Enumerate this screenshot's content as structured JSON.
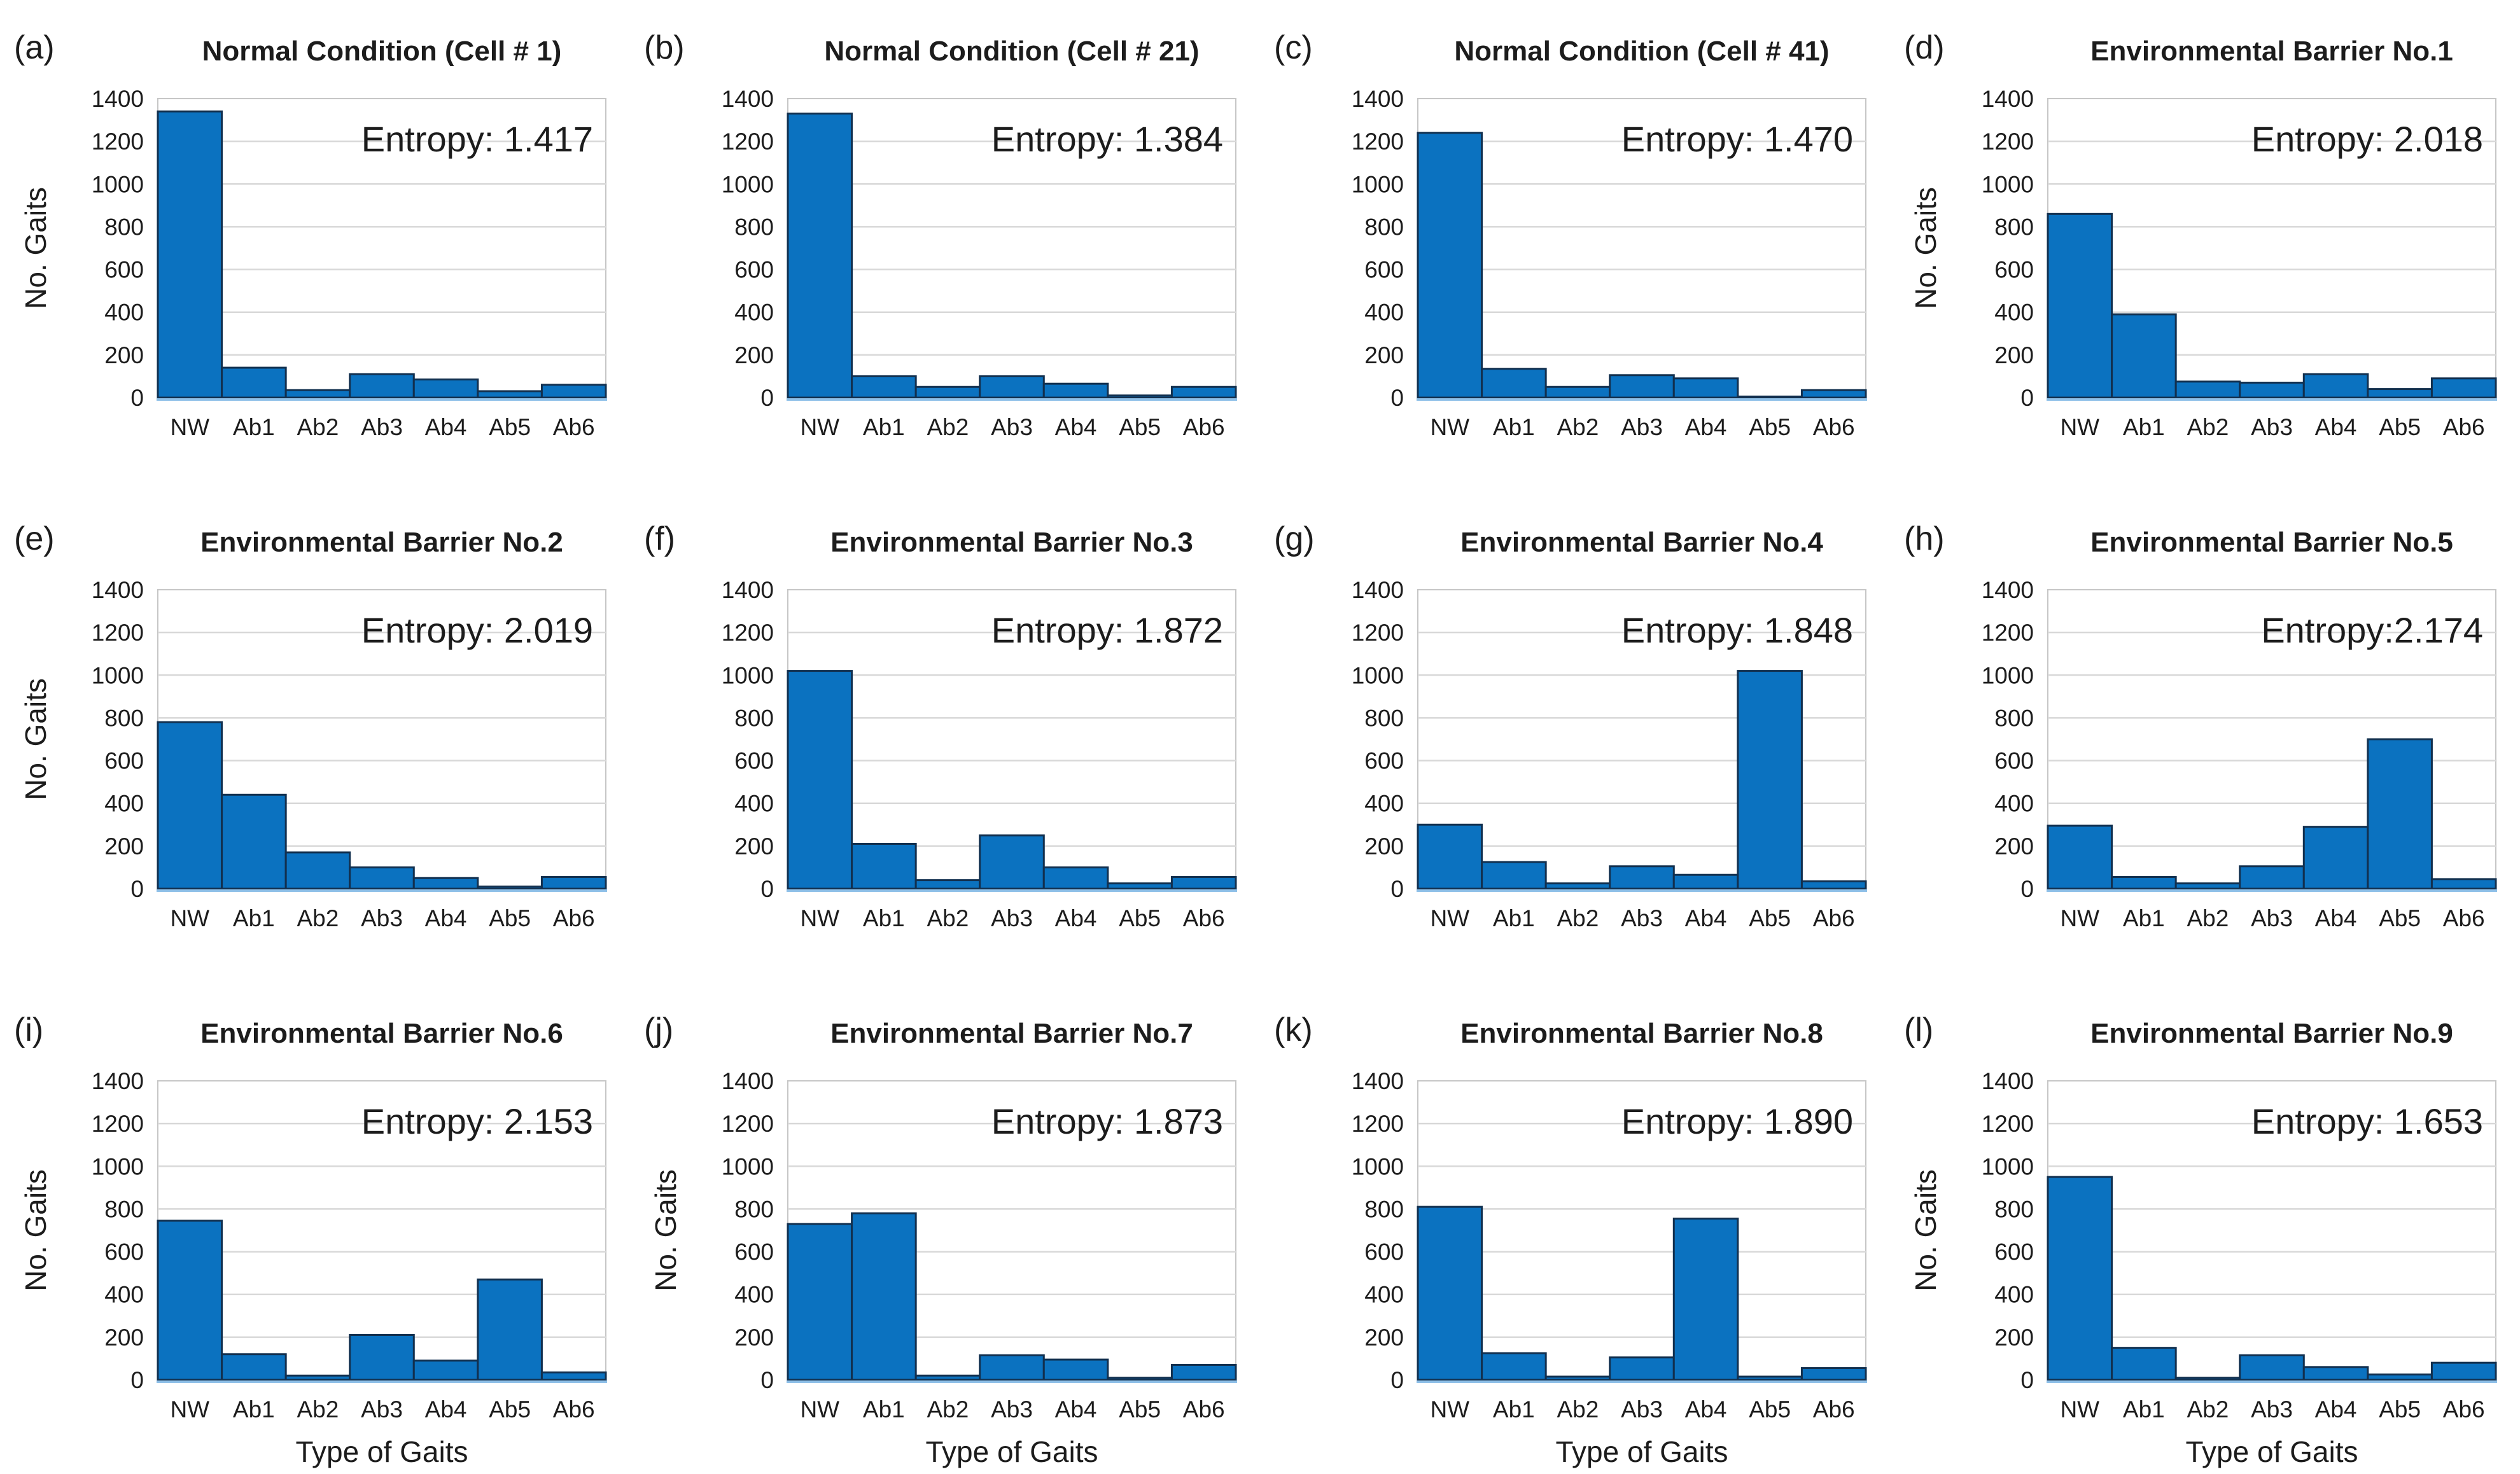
{
  "figure": {
    "bar_color": "#0b72c0",
    "bar_edge_color": "#12304f",
    "grid_color": "#d8d8d8",
    "plot_border_color": "#c6c6c6",
    "baseline_color": "#8fc0e8",
    "text_color": "#1c1c1c"
  },
  "axes": {
    "ylabel": "No. Gaits",
    "xlabel": "Type of Gaits",
    "categories": [
      "NW",
      "Ab1",
      "Ab2",
      "Ab3",
      "Ab4",
      "Ab5",
      "Ab6"
    ],
    "yticks": [
      0,
      200,
      400,
      600,
      800,
      1000,
      1200,
      1400
    ],
    "ylim": [
      0,
      1400
    ],
    "grid": true
  },
  "chart_data": [
    {
      "type": "bar",
      "panel": "(a)",
      "title": "Normal Condition (Cell # 1)",
      "entropy_label": "Entropy: 1.417",
      "entropy": 1.417,
      "categories": [
        "NW",
        "Ab1",
        "Ab2",
        "Ab3",
        "Ab4",
        "Ab5",
        "Ab6"
      ],
      "values": [
        1340,
        140,
        35,
        110,
        85,
        30,
        60
      ],
      "ylim": [
        0,
        1400
      ],
      "show_ylabel": true,
      "show_xlabel": false
    },
    {
      "type": "bar",
      "panel": "(b)",
      "title": "Normal Condition (Cell # 21)",
      "entropy_label": "Entropy: 1.384",
      "entropy": 1.384,
      "categories": [
        "NW",
        "Ab1",
        "Ab2",
        "Ab3",
        "Ab4",
        "Ab5",
        "Ab6"
      ],
      "values": [
        1330,
        100,
        50,
        100,
        65,
        10,
        50
      ],
      "ylim": [
        0,
        1400
      ],
      "show_ylabel": false,
      "show_xlabel": false
    },
    {
      "type": "bar",
      "panel": "(c)",
      "title": "Normal Condition (Cell # 41)",
      "entropy_label": "Entropy: 1.470",
      "entropy": 1.47,
      "categories": [
        "NW",
        "Ab1",
        "Ab2",
        "Ab3",
        "Ab4",
        "Ab5",
        "Ab6"
      ],
      "values": [
        1240,
        135,
        50,
        105,
        90,
        5,
        35
      ],
      "ylim": [
        0,
        1400
      ],
      "show_ylabel": false,
      "show_xlabel": false
    },
    {
      "type": "bar",
      "panel": "(d)",
      "title": "Environmental Barrier No.1",
      "entropy_label": "Entropy: 2.018",
      "entropy": 2.018,
      "categories": [
        "NW",
        "Ab1",
        "Ab2",
        "Ab3",
        "Ab4",
        "Ab5",
        "Ab6"
      ],
      "values": [
        860,
        390,
        75,
        70,
        110,
        40,
        90
      ],
      "ylim": [
        0,
        1400
      ],
      "show_ylabel": true,
      "show_xlabel": false
    },
    {
      "type": "bar",
      "panel": "(e)",
      "title": "Environmental Barrier No.2",
      "entropy_label": "Entropy: 2.019",
      "entropy": 2.019,
      "categories": [
        "NW",
        "Ab1",
        "Ab2",
        "Ab3",
        "Ab4",
        "Ab5",
        "Ab6"
      ],
      "values": [
        780,
        440,
        170,
        100,
        50,
        10,
        55
      ],
      "ylim": [
        0,
        1400
      ],
      "show_ylabel": true,
      "show_xlabel": false
    },
    {
      "type": "bar",
      "panel": "(f)",
      "title": "Environmental Barrier No.3",
      "entropy_label": "Entropy: 1.872",
      "entropy": 1.872,
      "categories": [
        "NW",
        "Ab1",
        "Ab2",
        "Ab3",
        "Ab4",
        "Ab5",
        "Ab6"
      ],
      "values": [
        1020,
        210,
        40,
        250,
        100,
        25,
        55
      ],
      "ylim": [
        0,
        1400
      ],
      "show_ylabel": false,
      "show_xlabel": false
    },
    {
      "type": "bar",
      "panel": "(g)",
      "title": "Environmental Barrier No.4",
      "entropy_label": "Entropy: 1.848",
      "entropy": 1.848,
      "categories": [
        "NW",
        "Ab1",
        "Ab2",
        "Ab3",
        "Ab4",
        "Ab5",
        "Ab6"
      ],
      "values": [
        300,
        125,
        25,
        105,
        65,
        1020,
        35
      ],
      "ylim": [
        0,
        1400
      ],
      "show_ylabel": false,
      "show_xlabel": false
    },
    {
      "type": "bar",
      "panel": "(h)",
      "title": "Environmental Barrier No.5",
      "entropy_label": "Entropy:2.174",
      "entropy": 2.174,
      "categories": [
        "NW",
        "Ab1",
        "Ab2",
        "Ab3",
        "Ab4",
        "Ab5",
        "Ab6"
      ],
      "values": [
        295,
        55,
        25,
        105,
        290,
        700,
        45
      ],
      "ylim": [
        0,
        1400
      ],
      "show_ylabel": false,
      "show_xlabel": false
    },
    {
      "type": "bar",
      "panel": "(i)",
      "title": "Environmental Barrier No.6",
      "entropy_label": "Entropy: 2.153",
      "entropy": 2.153,
      "categories": [
        "NW",
        "Ab1",
        "Ab2",
        "Ab3",
        "Ab4",
        "Ab5",
        "Ab6"
      ],
      "values": [
        745,
        120,
        20,
        210,
        90,
        470,
        35
      ],
      "ylim": [
        0,
        1400
      ],
      "show_ylabel": true,
      "show_xlabel": true
    },
    {
      "type": "bar",
      "panel": "(j)",
      "title": "Environmental Barrier No.7",
      "entropy_label": "Entropy: 1.873",
      "entropy": 1.873,
      "categories": [
        "NW",
        "Ab1",
        "Ab2",
        "Ab3",
        "Ab4",
        "Ab5",
        "Ab6"
      ],
      "values": [
        730,
        780,
        20,
        115,
        95,
        10,
        70
      ],
      "ylim": [
        0,
        1400
      ],
      "show_ylabel": true,
      "show_xlabel": true
    },
    {
      "type": "bar",
      "panel": "(k)",
      "title": "Environmental Barrier No.8",
      "entropy_label": "Entropy: 1.890",
      "entropy": 1.89,
      "categories": [
        "NW",
        "Ab1",
        "Ab2",
        "Ab3",
        "Ab4",
        "Ab5",
        "Ab6"
      ],
      "values": [
        810,
        125,
        15,
        105,
        755,
        15,
        55
      ],
      "ylim": [
        0,
        1400
      ],
      "show_ylabel": false,
      "show_xlabel": true
    },
    {
      "type": "bar",
      "panel": "(l)",
      "title": "Environmental Barrier No.9",
      "entropy_label": "Entropy: 1.653",
      "entropy": 1.653,
      "categories": [
        "NW",
        "Ab1",
        "Ab2",
        "Ab3",
        "Ab4",
        "Ab5",
        "Ab6"
      ],
      "values": [
        950,
        150,
        10,
        115,
        60,
        25,
        80
      ],
      "ylim": [
        0,
        1400
      ],
      "show_ylabel": true,
      "show_xlabel": true
    }
  ]
}
